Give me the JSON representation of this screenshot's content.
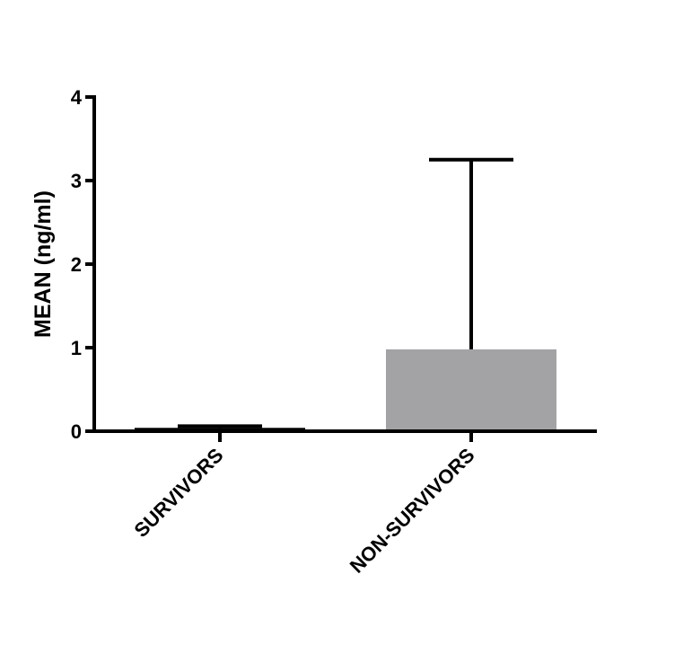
{
  "chart_data": {
    "type": "bar",
    "categories": [
      "SURVIVORS",
      "NON-SURVIVORS"
    ],
    "values": [
      0.04,
      0.98
    ],
    "error_upper": [
      0.06,
      3.25
    ],
    "ylabel": "MEAN (ng/ml)",
    "xlabel": "",
    "ylim": [
      0,
      4
    ],
    "yticks": [
      0,
      1,
      2,
      3,
      4
    ],
    "grid": false,
    "bar_color": "#a3a3a6"
  }
}
